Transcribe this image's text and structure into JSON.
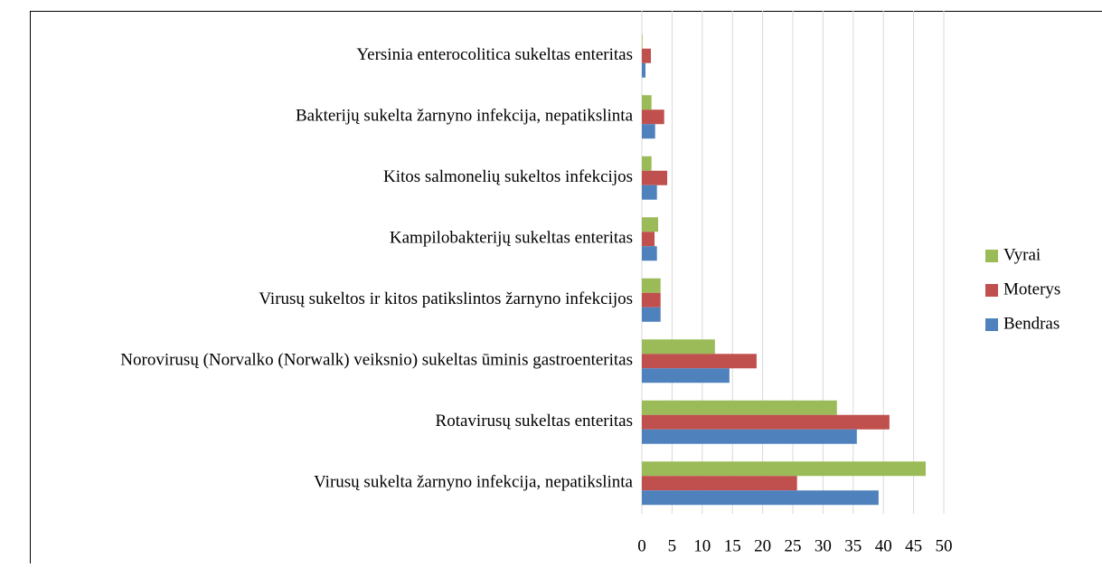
{
  "chart_data": {
    "type": "bar",
    "orientation": "horizontal",
    "categories": [
      "Virusų sukelta žarnyno infekcija, nepatikslinta",
      "Rotavirusų sukeltas enteritas",
      "Norovirusų (Norvalko (Norwalk) veiksnio) sukeltas ūminis gastroenteritas",
      "Virusų sukeltos ir kitos patikslintos žarnyno infekcijos",
      "Kampilobakterijų sukeltas enteritas",
      "Kitos salmonelių sukeltos infekcijos",
      "Bakterijų sukelta žarnyno infekcija, nepatikslinta",
      "Yersinia enterocolitica sukeltas enteritas"
    ],
    "series": [
      {
        "name": "Vyrai",
        "color": "#9bbb59",
        "values": [
          47.0,
          32.3,
          12.1,
          3.1,
          2.7,
          1.6,
          1.6,
          0.1
        ]
      },
      {
        "name": "Moterys",
        "color": "#c0504d",
        "values": [
          25.7,
          41.0,
          19.0,
          3.1,
          2.1,
          4.2,
          3.7,
          1.5
        ]
      },
      {
        "name": "Bendras",
        "color": "#4f81bd",
        "values": [
          39.2,
          35.6,
          14.5,
          3.1,
          2.5,
          2.5,
          2.2,
          0.6
        ]
      }
    ],
    "xlim": [
      0,
      50
    ],
    "xticks": [
      0,
      5,
      10,
      15,
      20,
      25,
      30,
      35,
      40,
      45,
      50
    ],
    "grid": true,
    "legend": "right"
  }
}
